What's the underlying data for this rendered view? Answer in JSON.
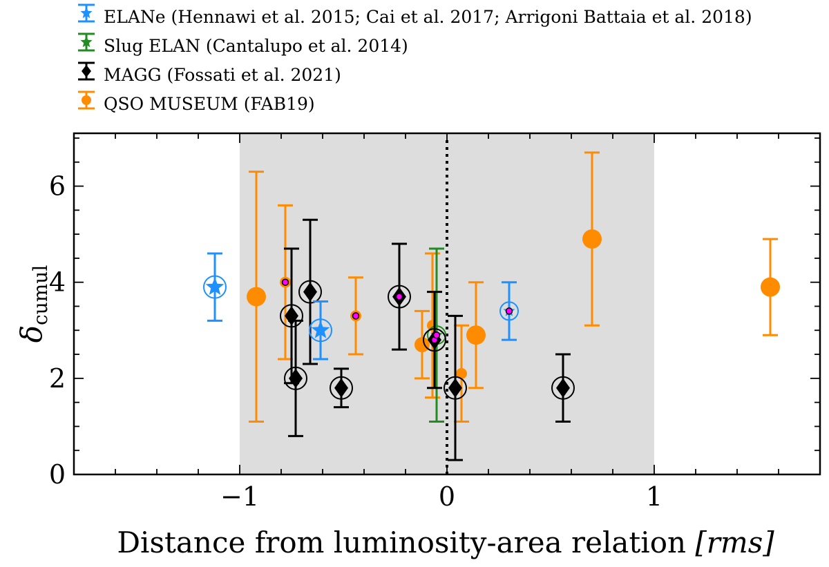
{
  "chart_data": {
    "type": "scatter",
    "title": "",
    "xlabel": "Distance from luminosity-area relation [rms]",
    "xlabel_main": "Distance from luminosity-area relation ",
    "xlabel_unit": "[rms]",
    "ylabel": "δcumul",
    "ylabel_symbol": "δ",
    "ylabel_sub": "cumul",
    "xlim": [
      -1.8,
      1.8
    ],
    "ylim": [
      0,
      7.1
    ],
    "xticks": [
      -1,
      0,
      1
    ],
    "xtick_labels": [
      "−1",
      "0",
      "1"
    ],
    "yticks": [
      0,
      2,
      4,
      6
    ],
    "ytick_labels": [
      "0",
      "2",
      "4",
      "6"
    ],
    "shaded_region": [
      -1,
      1
    ],
    "vertical_line_x": 0,
    "legend_position": "top-left, above plot",
    "colors": {
      "ELANe": "#1e90ff",
      "Slug": "#228b22",
      "MAGG": "#000000",
      "QSO": "#ff8c00",
      "highlight": "#ff00ff",
      "shade": "#dddddd"
    },
    "series": [
      {
        "key": "ELANe",
        "name": "ELANe (Hennawi et al. 2015; Cai et al. 2017; Arrigoni Battaia et al. 2018)",
        "marker": "star",
        "points": [
          {
            "x": -1.12,
            "y": 3.9,
            "lo": 3.2,
            "hi": 4.6,
            "size": "large"
          },
          {
            "x": -0.61,
            "y": 3.0,
            "lo": 2.4,
            "hi": 3.6,
            "size": "large"
          },
          {
            "x": 0.3,
            "y": 3.4,
            "lo": 2.8,
            "hi": 4.0,
            "size": "small"
          }
        ]
      },
      {
        "key": "Slug",
        "name": "Slug ELAN (Cantalupo et al. 2014)",
        "marker": "star",
        "points": [
          {
            "x": -0.05,
            "y": 2.9,
            "lo": 1.1,
            "hi": 4.7,
            "size": "small"
          }
        ]
      },
      {
        "key": "MAGG",
        "name": "MAGG (Fossati et al. 2021)",
        "marker": "diamond",
        "points": [
          {
            "x": -0.75,
            "y": 3.3,
            "lo": 1.9,
            "hi": 4.7,
            "size": "large"
          },
          {
            "x": -0.73,
            "y": 2.0,
            "lo": 0.8,
            "hi": 3.2,
            "size": "large"
          },
          {
            "x": -0.66,
            "y": 3.8,
            "lo": 2.3,
            "hi": 5.3,
            "size": "large"
          },
          {
            "x": -0.51,
            "y": 1.8,
            "lo": 1.4,
            "hi": 2.2,
            "size": "large"
          },
          {
            "x": -0.23,
            "y": 3.7,
            "lo": 2.6,
            "hi": 4.8,
            "size": "large"
          },
          {
            "x": -0.06,
            "y": 2.8,
            "lo": 1.8,
            "hi": 3.8,
            "size": "large"
          },
          {
            "x": 0.04,
            "y": 1.8,
            "lo": 0.3,
            "hi": 3.3,
            "size": "large"
          },
          {
            "x": 0.56,
            "y": 1.8,
            "lo": 1.1,
            "hi": 2.5,
            "size": "large"
          }
        ]
      },
      {
        "key": "QSO",
        "name": "QSO MUSEUM (FAB19)",
        "marker": "circle",
        "points": [
          {
            "x": -0.92,
            "y": 3.7,
            "lo": 1.1,
            "hi": 6.3,
            "size": "large"
          },
          {
            "x": -0.78,
            "y": 4.0,
            "lo": 2.4,
            "hi": 5.6,
            "size": "small"
          },
          {
            "x": -0.44,
            "y": 3.3,
            "lo": 2.5,
            "hi": 4.1,
            "size": "small"
          },
          {
            "x": -0.12,
            "y": 2.7,
            "lo": 2.0,
            "hi": 3.4,
            "size": "medium"
          },
          {
            "x": -0.07,
            "y": 3.1,
            "lo": 1.6,
            "hi": 4.6,
            "size": "small"
          },
          {
            "x": 0.07,
            "y": 2.1,
            "lo": 1.1,
            "hi": 3.1,
            "size": "small"
          },
          {
            "x": 0.14,
            "y": 2.9,
            "lo": 1.8,
            "hi": 4.0,
            "size": "large"
          },
          {
            "x": 0.7,
            "y": 4.9,
            "lo": 3.1,
            "hi": 6.7,
            "size": "large"
          },
          {
            "x": 1.56,
            "y": 3.9,
            "lo": 2.9,
            "hi": 4.9,
            "size": "large"
          }
        ]
      }
    ],
    "highlights": [
      {
        "x": -0.78,
        "y": 4.0
      },
      {
        "x": -0.44,
        "y": 3.3
      },
      {
        "x": -0.23,
        "y": 3.7
      },
      {
        "x": -0.06,
        "y": 2.8
      },
      {
        "x": -0.05,
        "y": 2.9
      },
      {
        "x": 0.3,
        "y": 3.4
      }
    ]
  }
}
